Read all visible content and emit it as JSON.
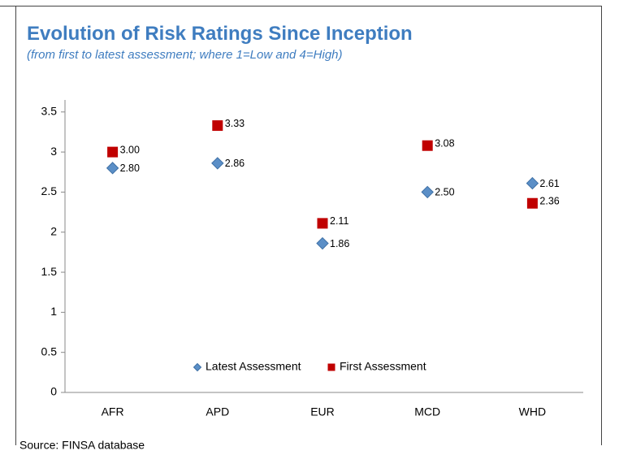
{
  "chart_data": {
    "type": "dot",
    "title": "Evolution of Risk Ratings Since Inception",
    "subtitle": "(from first to latest assessment; where 1=Low and 4=High)",
    "source": "Source: FINSA database",
    "categories": [
      "AFR",
      "APD",
      "EUR",
      "MCD",
      "WHD"
    ],
    "series": [
      {
        "name": "Latest Assessment",
        "color": "#5b8fc7",
        "marker": "diamond",
        "values": [
          2.8,
          2.86,
          1.86,
          2.5,
          2.61
        ],
        "value_labels": [
          "2.80",
          "2.86",
          "1.86",
          "2.50",
          "2.61"
        ]
      },
      {
        "name": "First Assessment",
        "color": "#c00000",
        "marker": "square",
        "values": [
          3.0,
          3.33,
          2.11,
          3.08,
          2.36
        ],
        "value_labels": [
          "3.00",
          "3.33",
          "2.11",
          "3.08",
          "2.36"
        ]
      }
    ],
    "ylim": [
      0,
      3.65
    ],
    "yticks": [
      0,
      0.5,
      1,
      1.5,
      2,
      2.5,
      3,
      3.5
    ],
    "grid": false,
    "legend": "bottom"
  }
}
